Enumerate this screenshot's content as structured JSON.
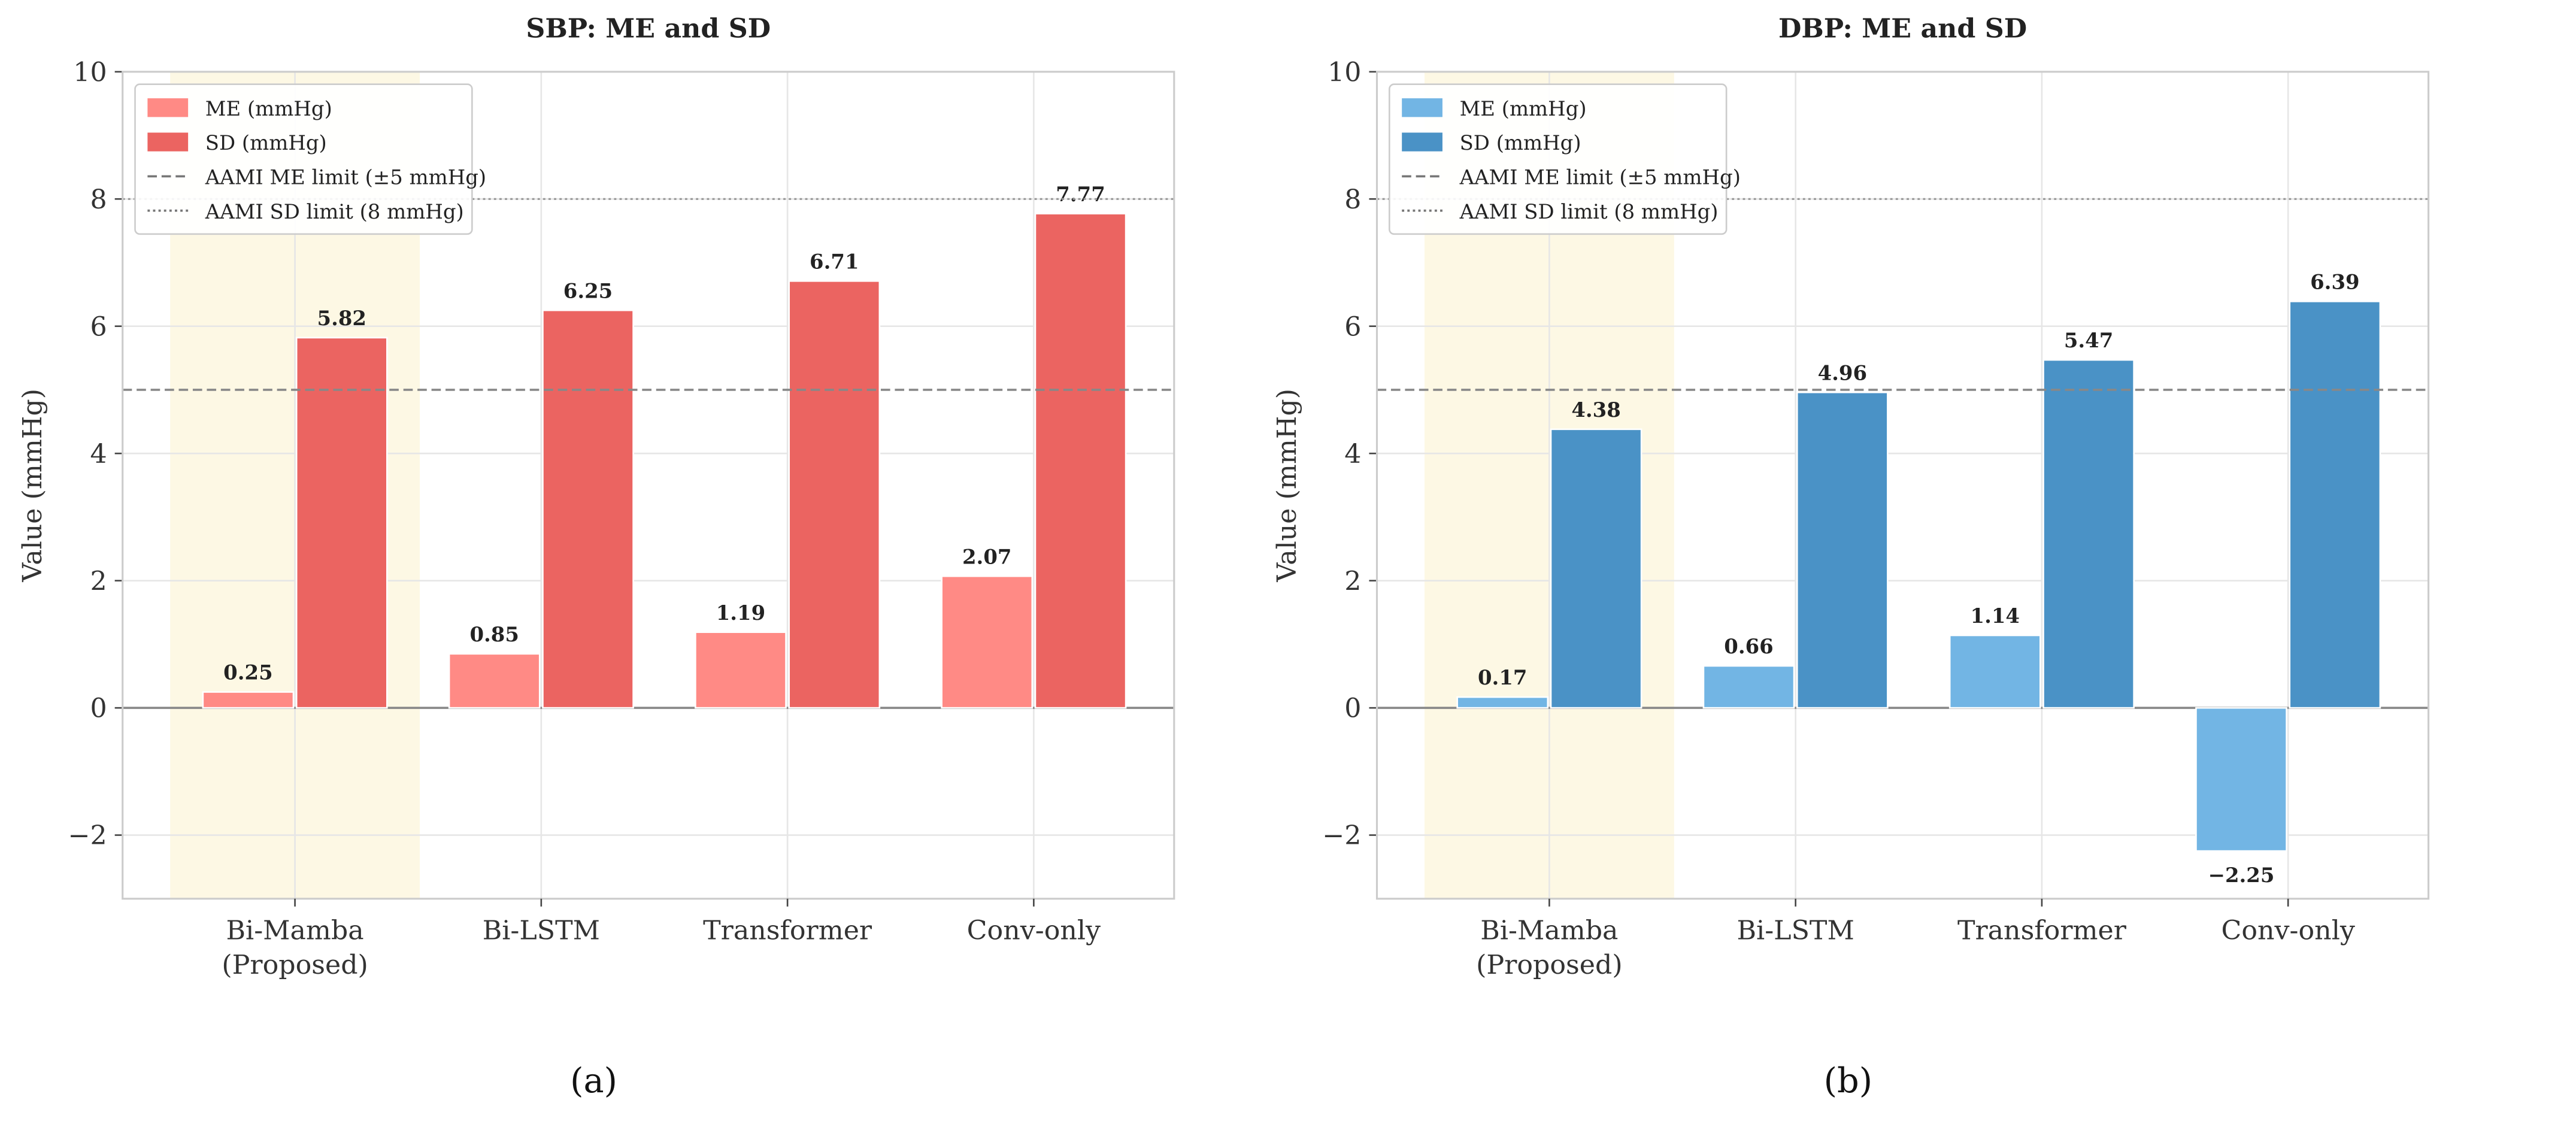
{
  "chart_data": [
    {
      "type": "bar",
      "panel_label": "(a)",
      "title": "SBP: ME and SD",
      "xlabel": "",
      "ylabel": "Value (mmHg)",
      "ylim": [
        -3,
        10
      ],
      "yticks": [
        -2,
        0,
        2,
        4,
        6,
        8,
        10
      ],
      "ytick_labels": [
        "−2",
        "0",
        "2",
        "4",
        "6",
        "8",
        "10"
      ],
      "categories": [
        "Bi-Mamba\n(Proposed)",
        "Bi-LSTM",
        "Transformer",
        "Conv-only"
      ],
      "highlight_category": "Bi-Mamba\n(Proposed)",
      "grid": true,
      "legend_position": "top-left",
      "series": [
        {
          "name": "ME (mmHg)",
          "color": "#ff8a85",
          "values": [
            0.25,
            0.85,
            1.19,
            2.07
          ],
          "labels": [
            "0.25",
            "0.85",
            "1.19",
            "2.07"
          ]
        },
        {
          "name": "SD (mmHg)",
          "color": "#eb6461",
          "values": [
            5.82,
            6.25,
            6.71,
            7.77
          ],
          "labels": [
            "5.82",
            "6.25",
            "6.71",
            "7.77"
          ]
        }
      ],
      "reference_lines": [
        {
          "name": "AAMI ME limit (±5 mmHg)",
          "value": 5,
          "style": "dashed"
        },
        {
          "name": "AAMI SD limit (8 mmHg)",
          "value": 8,
          "style": "dotted"
        }
      ]
    },
    {
      "type": "bar",
      "panel_label": "(b)",
      "title": "DBP: ME and SD",
      "xlabel": "",
      "ylabel": "Value (mmHg)",
      "ylim": [
        -3,
        10
      ],
      "yticks": [
        -2,
        0,
        2,
        4,
        6,
        8,
        10
      ],
      "ytick_labels": [
        "−2",
        "0",
        "2",
        "4",
        "6",
        "8",
        "10"
      ],
      "categories": [
        "Bi-Mamba\n(Proposed)",
        "Bi-LSTM",
        "Transformer",
        "Conv-only"
      ],
      "highlight_category": "Bi-Mamba\n(Proposed)",
      "grid": true,
      "legend_position": "top-left",
      "series": [
        {
          "name": "ME (mmHg)",
          "color": "#72b5e4",
          "values": [
            0.17,
            0.66,
            1.14,
            -2.25
          ],
          "labels": [
            "0.17",
            "0.66",
            "1.14",
            "−2.25"
          ]
        },
        {
          "name": "SD (mmHg)",
          "color": "#4a92c6",
          "values": [
            4.38,
            4.96,
            5.47,
            6.39
          ],
          "labels": [
            "4.38",
            "4.96",
            "5.47",
            "6.39"
          ]
        }
      ],
      "reference_lines": [
        {
          "name": "AAMI ME limit (±5 mmHg)",
          "value": 5,
          "style": "dashed"
        },
        {
          "name": "AAMI SD limit (8 mmHg)",
          "value": 8,
          "style": "dotted"
        }
      ]
    }
  ]
}
